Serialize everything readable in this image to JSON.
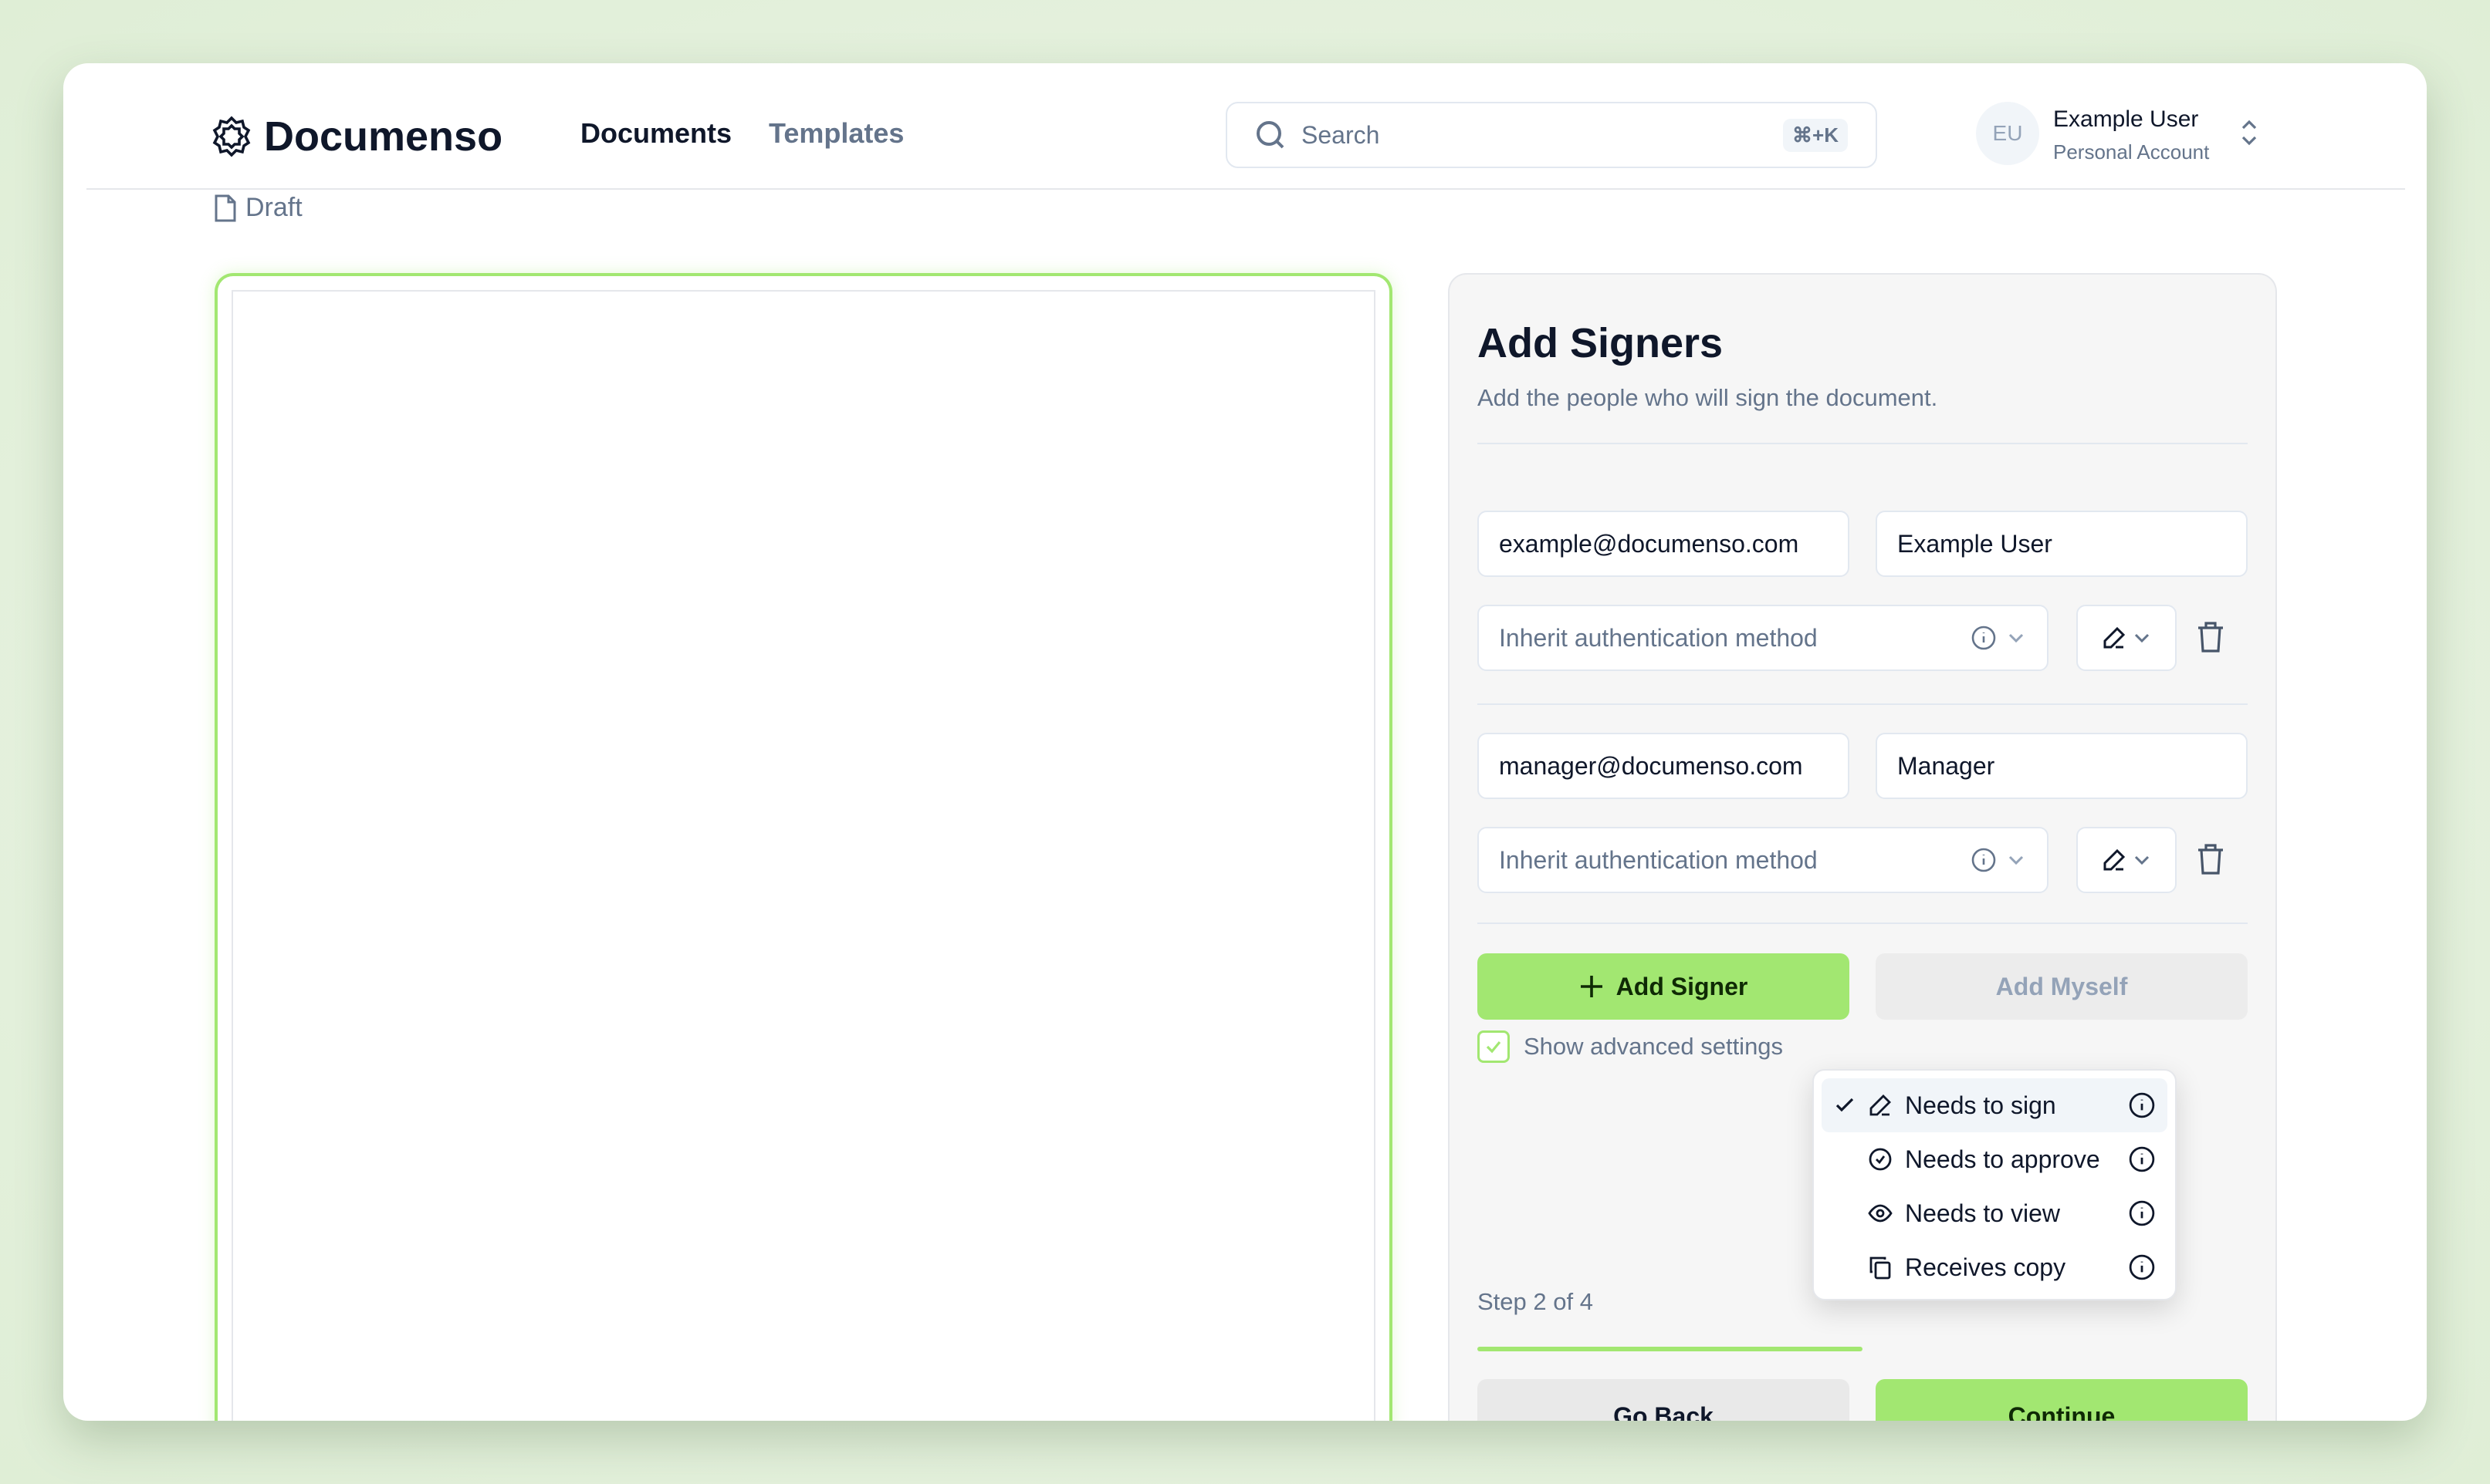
{
  "header": {
    "brand": "Documenso",
    "nav": [
      {
        "label": "Documents",
        "active": true
      },
      {
        "label": "Templates",
        "active": false
      }
    ],
    "search": {
      "placeholder": "Search",
      "shortcut": "⌘+K"
    },
    "user": {
      "initials": "EU",
      "name": "Example User",
      "account": "Personal Account"
    }
  },
  "document": {
    "status": "Draft"
  },
  "panel": {
    "title": "Add Signers",
    "subtitle": "Add the people who will sign the document.",
    "signers": [
      {
        "email": "example@documenso.com",
        "name": "Example User",
        "auth": "Inherit authentication method",
        "role_icon": "pen-icon"
      },
      {
        "email": "manager@documenso.com",
        "name": "Manager",
        "auth": "Inherit authentication method",
        "role_icon": "pen-icon"
      }
    ],
    "add_signer": "Add Signer",
    "add_myself": "Add Myself",
    "advanced": {
      "label": "Show advanced settings",
      "checked": true
    },
    "step": "Step 2 of 4",
    "progress": 0.5,
    "go_back": "Go Back",
    "continue": "Continue"
  },
  "role_menu": {
    "items": [
      {
        "label": "Needs to sign",
        "icon": "pen-icon",
        "selected": true
      },
      {
        "label": "Needs to approve",
        "icon": "badge-check-icon",
        "selected": false
      },
      {
        "label": "Needs to view",
        "icon": "eye-icon",
        "selected": false
      },
      {
        "label": "Receives copy",
        "icon": "copy-icon",
        "selected": false
      }
    ]
  },
  "colors": {
    "accent": "#a2e771",
    "background": "#e4f0dd"
  }
}
